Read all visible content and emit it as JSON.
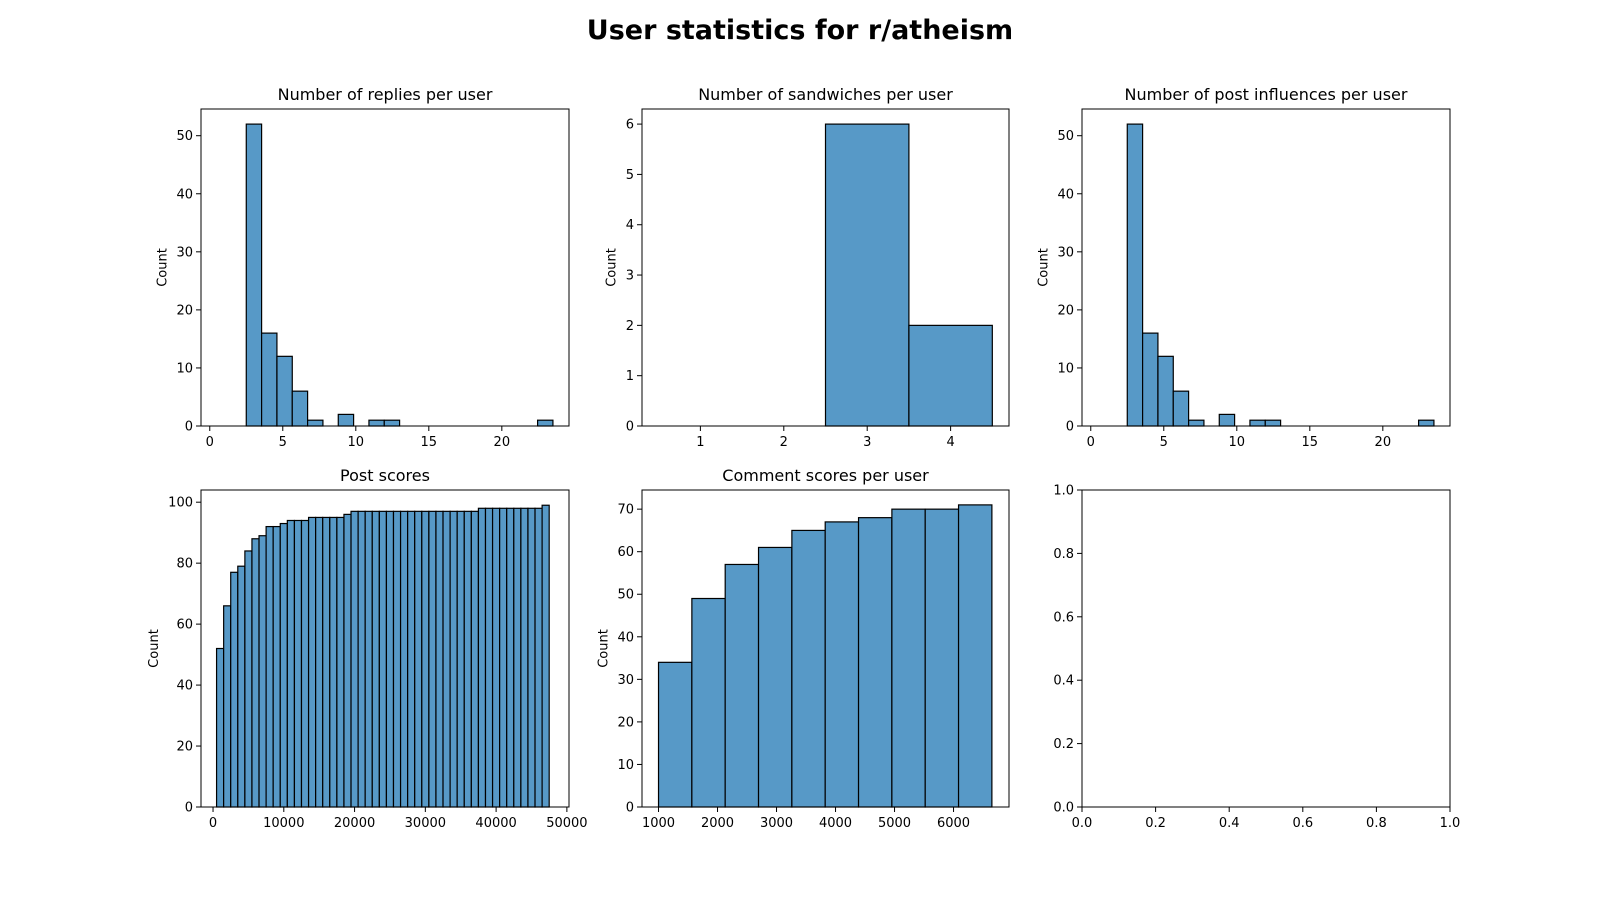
{
  "figure": {
    "title": "User statistics for r/atheism"
  },
  "chart_data": [
    {
      "type": "bar",
      "title": "Number of replies per user",
      "xlabel": "",
      "ylabel": "Count",
      "xlim": [
        -0.6,
        24.6
      ],
      "ylim": [
        0,
        54.6
      ],
      "xticks": [
        0,
        5,
        10,
        15,
        20
      ],
      "yticks": [
        0,
        10,
        20,
        30,
        40,
        50
      ],
      "bin_start": 2.5,
      "bin_width": 1.05,
      "values": [
        52,
        16,
        12,
        6,
        1,
        0,
        2,
        0,
        1,
        1,
        0,
        0,
        0,
        0,
        0,
        0,
        0,
        0,
        0,
        1
      ]
    },
    {
      "type": "bar",
      "title": "Number of sandwiches per user",
      "xlabel": "",
      "ylabel": "Count",
      "xlim": [
        0.3,
        4.7
      ],
      "ylim": [
        0,
        6.3
      ],
      "xticks": [
        1,
        2,
        3,
        4
      ],
      "yticks": [
        0,
        1,
        2,
        3,
        4,
        5,
        6
      ],
      "bin_start": 0.5,
      "bin_width": 1.0,
      "values": [
        0,
        0,
        6,
        2
      ]
    },
    {
      "type": "bar",
      "title": "Number of post influences per user",
      "xlabel": "",
      "ylabel": "Count",
      "xlim": [
        -0.6,
        24.6
      ],
      "ylim": [
        0,
        54.6
      ],
      "xticks": [
        0,
        5,
        10,
        15,
        20
      ],
      "yticks": [
        0,
        10,
        20,
        30,
        40,
        50
      ],
      "bin_start": 2.5,
      "bin_width": 1.05,
      "values": [
        52,
        16,
        12,
        6,
        1,
        0,
        2,
        0,
        1,
        1,
        0,
        0,
        0,
        0,
        0,
        0,
        0,
        0,
        0,
        1
      ]
    },
    {
      "type": "bar",
      "title": "Post scores",
      "xlabel": "",
      "ylabel": "Count",
      "xlim": [
        -1700,
        50300
      ],
      "ylim": [
        0,
        104
      ],
      "xticks": [
        0,
        10000,
        20000,
        30000,
        40000,
        50000
      ],
      "yticks": [
        0,
        20,
        40,
        60,
        80,
        100
      ],
      "bin_start": 500,
      "bin_width": 1000,
      "values": [
        52,
        66,
        77,
        79,
        84,
        88,
        89,
        92,
        92,
        93,
        94,
        94,
        94,
        95,
        95,
        95,
        95,
        95,
        96,
        97,
        97,
        97,
        97,
        97,
        97,
        97,
        97,
        97,
        97,
        97,
        97,
        97,
        97,
        97,
        97,
        97,
        97,
        98,
        98,
        98,
        98,
        98,
        98,
        98,
        98,
        98,
        99
      ]
    },
    {
      "type": "bar",
      "title": "Comment scores per user",
      "xlabel": "",
      "ylabel": "Count",
      "xlim": [
        720,
        6940
      ],
      "ylim": [
        0,
        74.5
      ],
      "xticks": [
        1000,
        2000,
        3000,
        4000,
        5000,
        6000
      ],
      "yticks": [
        0,
        10,
        20,
        30,
        40,
        50,
        60,
        70
      ],
      "bin_start": 1000,
      "bin_width": 565,
      "values": [
        34,
        49,
        57,
        61,
        65,
        67,
        68,
        70,
        70,
        71
      ]
    },
    {
      "type": "bar",
      "title": "",
      "xlabel": "",
      "ylabel": "",
      "xlim": [
        0,
        1
      ],
      "ylim": [
        0,
        1
      ],
      "xticks": [
        0.0,
        0.2,
        0.4,
        0.6,
        0.8,
        1.0
      ],
      "yticks": [
        0.0,
        0.2,
        0.4,
        0.6,
        0.8,
        1.0
      ],
      "bin_start": 0,
      "bin_width": 0,
      "values": []
    }
  ]
}
